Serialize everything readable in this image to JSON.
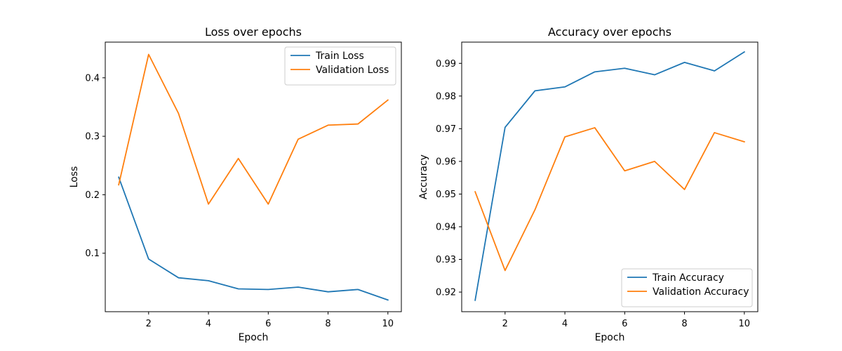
{
  "chart_data": [
    {
      "type": "line",
      "title": "Loss over epochs",
      "xlabel": "Epoch",
      "ylabel": "Loss",
      "xlim": [
        0.55,
        10.45
      ],
      "ylim": [
        0.0,
        0.461
      ],
      "xticks": [
        2,
        4,
        6,
        8,
        10
      ],
      "yticks": [
        0.1,
        0.2,
        0.3,
        0.4
      ],
      "grid": false,
      "legend_position": "upper right",
      "x": [
        1,
        2,
        3,
        4,
        5,
        6,
        7,
        8,
        9,
        10
      ],
      "series": [
        {
          "name": "Train Loss",
          "color": "#1f77b4",
          "values": [
            0.23,
            0.09,
            0.058,
            0.053,
            0.039,
            0.038,
            0.042,
            0.034,
            0.038,
            0.02
          ]
        },
        {
          "name": "Validation Loss",
          "color": "#ff7f0e",
          "values": [
            0.217,
            0.44,
            0.339,
            0.184,
            0.262,
            0.184,
            0.295,
            0.319,
            0.321,
            0.362
          ]
        }
      ]
    },
    {
      "type": "line",
      "title": "Accuracy over epochs",
      "xlabel": "Epoch",
      "ylabel": "Accuracy",
      "xlim": [
        0.55,
        10.45
      ],
      "ylim": [
        0.914,
        0.9965
      ],
      "xticks": [
        2,
        4,
        6,
        8,
        10
      ],
      "yticks": [
        0.92,
        0.93,
        0.94,
        0.95,
        0.96,
        0.97,
        0.98,
        0.99
      ],
      "grid": false,
      "legend_position": "lower right",
      "x": [
        1,
        2,
        3,
        4,
        5,
        6,
        7,
        8,
        9,
        10
      ],
      "series": [
        {
          "name": "Train Accuracy",
          "color": "#1f77b4",
          "values": [
            0.9175,
            0.9704,
            0.9816,
            0.9828,
            0.9874,
            0.9885,
            0.9865,
            0.9903,
            0.9877,
            0.9935
          ]
        },
        {
          "name": "Validation Accuracy",
          "color": "#ff7f0e",
          "values": [
            0.9507,
            0.9266,
            0.9452,
            0.9675,
            0.9703,
            0.9571,
            0.96,
            0.9514,
            0.9688,
            0.966
          ]
        }
      ]
    }
  ]
}
